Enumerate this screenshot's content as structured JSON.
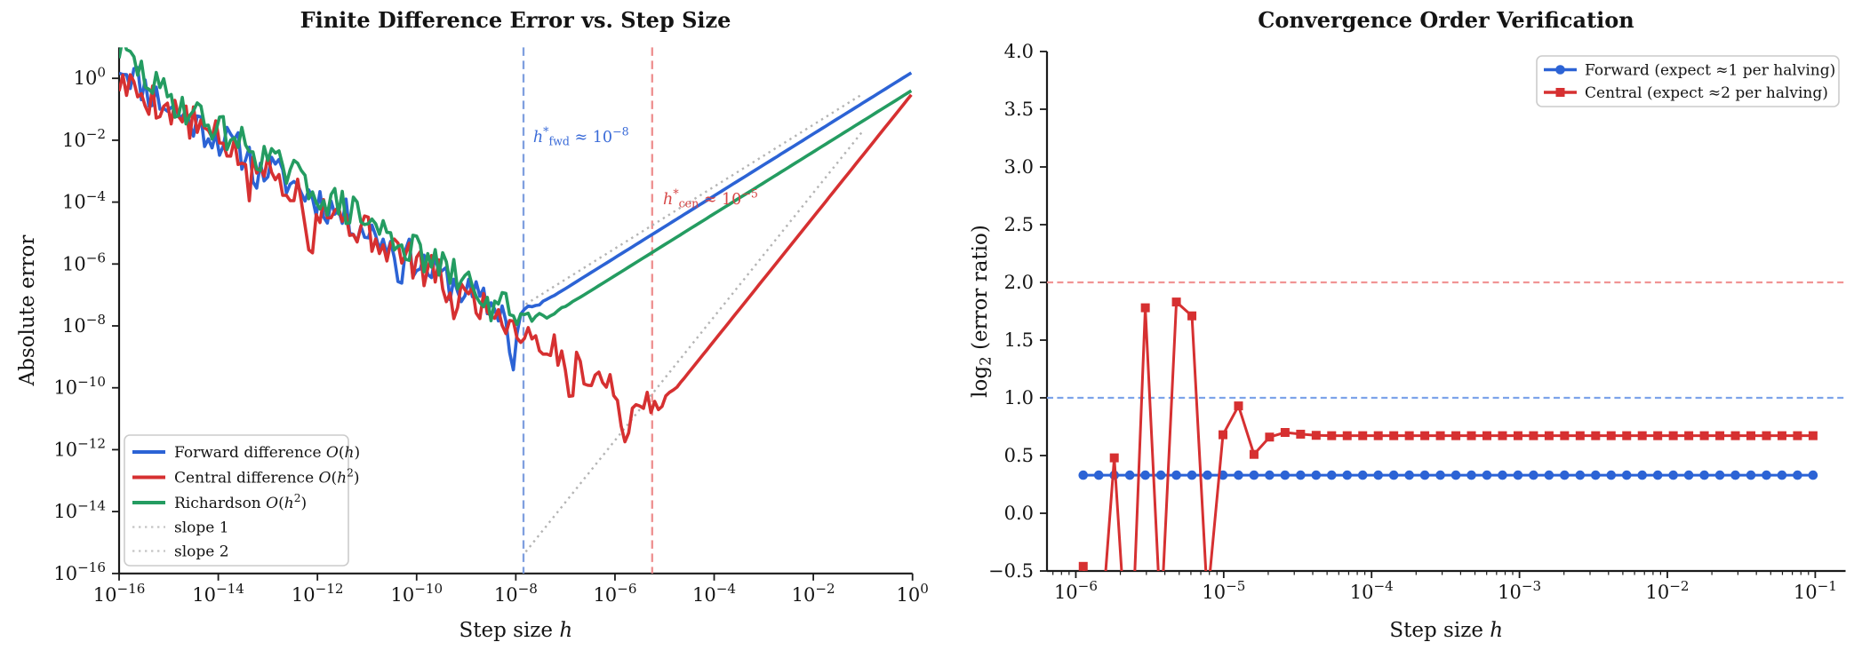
{
  "figure": {
    "background": "#ffffff",
    "text_color": "#141414",
    "spine_color": "#1a1a1a"
  },
  "chart_data": [
    {
      "id": "error_vs_step_size",
      "type": "line",
      "title": "Finite Difference Error vs. Step Size",
      "xlabel_segs": [
        [
          "Step size ",
          "n"
        ],
        [
          "h",
          "i"
        ]
      ],
      "ylabel": "Absolute error",
      "xscale": "log",
      "yscale": "log",
      "xlim_log10": [
        -16,
        0
      ],
      "ylim_log10": [
        -16,
        1
      ],
      "xtick_exponents": [
        -16,
        -14,
        -12,
        -10,
        -8,
        -6,
        -4,
        -2,
        0
      ],
      "ytick_exponents": [
        0,
        -2,
        -4,
        -6,
        -8,
        -10,
        -12,
        -14,
        -16
      ],
      "series": [
        {
          "key": "forward",
          "color": "#2c63d5",
          "linewidth": 3.6,
          "label_segs": [
            [
              "Forward difference ",
              "n"
            ],
            [
              "O",
              "i"
            ],
            [
              "(",
              "n"
            ],
            [
              "h",
              "i"
            ],
            [
              ")",
              "n"
            ]
          ],
          "model": {
            "kind": "fd_error",
            "trunc_coef": 1.6,
            "trunc_pow": 1,
            "round_coef": 1.2e-16,
            "noise_amp": 0.6,
            "seed": 11,
            "sample_step_log10": 0.075,
            "start_bump": 0.4,
            "dips": [
              [
                -8.06,
                -1.9
              ],
              [
                -10.35,
                -0.65
              ],
              [
                -13.2,
                -0.55
              ]
            ]
          }
        },
        {
          "key": "central",
          "color": "#d63031",
          "linewidth": 3.6,
          "label_segs": [
            [
              "Central difference ",
              "n"
            ],
            [
              "O",
              "i"
            ],
            [
              "(",
              "n"
            ],
            [
              "h",
              "i"
            ],
            [
              "2",
              "sup"
            ],
            [
              ")",
              "n"
            ]
          ],
          "model": {
            "kind": "fd_error",
            "trunc_coef": 0.33,
            "trunc_pow": 2,
            "round_coef": 1e-16,
            "noise_amp": 0.6,
            "seed": 5,
            "sample_step_log10": 0.075,
            "start_bump": -0.1,
            "dips": [
              [
                -5.77,
                -2.2
              ],
              [
                -6.9,
                -1.0
              ],
              [
                -9.3,
                -0.9
              ],
              [
                -12.15,
                -1.8
              ],
              [
                -13.4,
                -1.1
              ]
            ]
          }
        },
        {
          "key": "richardson",
          "color": "#249c61",
          "linewidth": 3.6,
          "label_segs": [
            [
              "Richardson ",
              "n"
            ],
            [
              "O",
              "i"
            ],
            [
              "(",
              "n"
            ],
            [
              "h",
              "i"
            ],
            [
              "2",
              "sup"
            ],
            [
              ")",
              "n"
            ]
          ],
          "model": {
            "kind": "fd_error",
            "trunc_coef": 0.42,
            "trunc_pow": 1,
            "round_coef": 2.4e-16,
            "noise_amp": 0.55,
            "seed": 29,
            "sample_step_log10": 0.075,
            "start_bump": 0.55,
            "dips": [
              [
                -8.5,
                -0.6
              ],
              [
                -11.8,
                -0.5
              ]
            ]
          }
        }
      ],
      "guide_lines": [
        {
          "label": "slope 1",
          "slope": 1,
          "intercept_log10": 0.5,
          "x_range_log10": [
            -7.8,
            -1.0
          ],
          "color": "#b4b4b4"
        },
        {
          "label": "slope 2",
          "slope": 2,
          "intercept_log10": 0.3,
          "x_range_log10": [
            -7.8,
            -1.0
          ],
          "color": "#b4b4b4"
        }
      ],
      "vlines": [
        {
          "x_log10": -7.845,
          "color": "#7f9fdf",
          "annotation_segs": [
            [
              "h",
              "i"
            ],
            [
              "*",
              "sup"
            ],
            [
              "fwd",
              "sub"
            ],
            [
              " ≈ 10",
              "n"
            ],
            [
              "−8",
              "sup"
            ]
          ],
          "annotation_color": "#3a6bd8",
          "annotation_at_log10": [
            -7.65,
            -2.06
          ]
        },
        {
          "x_log10": -5.25,
          "color": "#ee8f8f",
          "annotation_segs": [
            [
              "h",
              "i"
            ],
            [
              "*",
              "sup"
            ],
            [
              "cen",
              "sub"
            ],
            [
              " ≈ 10",
              "n"
            ],
            [
              "−5",
              "sup"
            ]
          ],
          "annotation_color": "#d64545",
          "annotation_at_log10": [
            -5.03,
            -4.07
          ]
        }
      ],
      "legend": {
        "position": "lower left"
      }
    },
    {
      "id": "convergence_order",
      "type": "line",
      "title": "Convergence Order Verification",
      "xlabel_segs": [
        [
          "Step size ",
          "n"
        ],
        [
          "h",
          "i"
        ]
      ],
      "ylabel_segs": [
        [
          "log",
          "n"
        ],
        [
          "2",
          "sub"
        ],
        [
          " (error ratio)",
          "n"
        ]
      ],
      "xscale": "log",
      "yscale": "linear",
      "xlim_log10": [
        -6.195,
        -0.795
      ],
      "ylim": [
        -0.5,
        4.0
      ],
      "xtick_exponents": [
        -6,
        -5,
        -4,
        -3,
        -2,
        -1
      ],
      "yticks": [
        -0.5,
        0.0,
        0.5,
        1.0,
        1.5,
        2.0,
        2.5,
        3.0,
        3.5,
        4.0
      ],
      "x_log10": [
        -5.95,
        -5.845,
        -5.74,
        -5.635,
        -5.53,
        -5.425,
        -5.32,
        -5.215,
        -5.11,
        -5.005,
        -4.9,
        -4.795,
        -4.69,
        -4.585,
        -4.48,
        -4.375,
        -4.27,
        -4.165,
        -4.06,
        -3.955,
        -3.85,
        -3.745,
        -3.64,
        -3.535,
        -3.43,
        -3.325,
        -3.22,
        -3.115,
        -3.01,
        -2.905,
        -2.8,
        -2.695,
        -2.59,
        -2.485,
        -2.38,
        -2.275,
        -2.17,
        -2.065,
        -1.96,
        -1.855,
        -1.75,
        -1.645,
        -1.54,
        -1.435,
        -1.33,
        -1.225,
        -1.12,
        -1.015
      ],
      "series": [
        {
          "key": "forward_ratio",
          "label": "Forward (expect ≈1 per halving)",
          "color": "#2c63d5",
          "marker": "circle",
          "linewidth": 3,
          "values": [
            0.33,
            0.33,
            0.33,
            0.33,
            0.33,
            0.33,
            0.33,
            0.33,
            0.33,
            0.33,
            0.33,
            0.33,
            0.33,
            0.33,
            0.33,
            0.33,
            0.33,
            0.33,
            0.33,
            0.33,
            0.33,
            0.33,
            0.33,
            0.33,
            0.33,
            0.33,
            0.33,
            0.33,
            0.33,
            0.33,
            0.33,
            0.33,
            0.33,
            0.33,
            0.33,
            0.33,
            0.33,
            0.33,
            0.33,
            0.33,
            0.33,
            0.33,
            0.33,
            0.33,
            0.33,
            0.33,
            0.33,
            0.33
          ]
        },
        {
          "key": "central_ratio",
          "label": "Central (expect ≈2 per halving)",
          "color": "#d63031",
          "marker": "square",
          "linewidth": 3,
          "values": [
            -0.46,
            -1.3,
            0.48,
            -1.6,
            1.78,
            -0.95,
            1.83,
            1.71,
            -0.75,
            0.68,
            0.93,
            0.51,
            0.66,
            0.7,
            0.685,
            0.675,
            0.672,
            0.672,
            0.672,
            0.672,
            0.672,
            0.672,
            0.672,
            0.672,
            0.672,
            0.672,
            0.672,
            0.672,
            0.672,
            0.672,
            0.672,
            0.672,
            0.672,
            0.672,
            0.672,
            0.672,
            0.672,
            0.672,
            0.672,
            0.672,
            0.672,
            0.672,
            0.672,
            0.672,
            0.672,
            0.672,
            0.672,
            0.672
          ]
        }
      ],
      "hlines": [
        {
          "y": 1.0,
          "color": "#7da3ea"
        },
        {
          "y": 2.0,
          "color": "#f19494"
        }
      ],
      "legend": {
        "position": "upper right"
      }
    }
  ]
}
